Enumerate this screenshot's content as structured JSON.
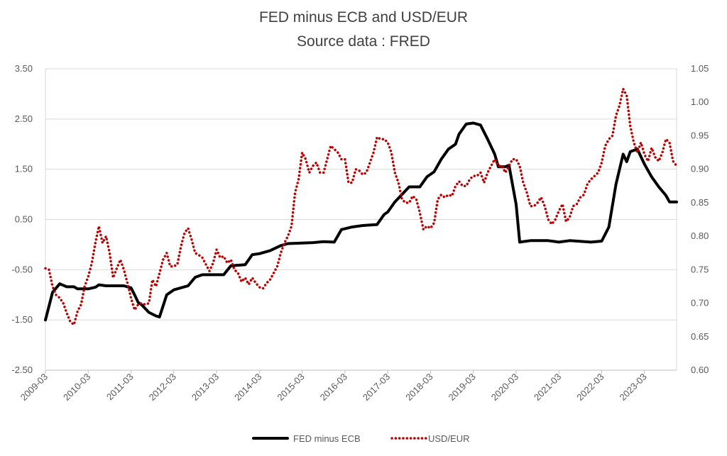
{
  "chart_data": {
    "type": "line",
    "title": "FED minus ECB and USD/EUR",
    "subtitle": "Source data : FRED",
    "xlabel": "",
    "ylabel": "",
    "y2label": "",
    "ylim": [
      -2.5,
      3.5
    ],
    "y2lim": [
      0.6,
      1.05
    ],
    "y_ticks": [
      "3.50",
      "2.50",
      "1.50",
      "0.50",
      "-0.50",
      "-1.50",
      "-2.50"
    ],
    "y_tick_values": [
      3.5,
      2.5,
      1.5,
      0.5,
      -0.5,
      -1.5,
      -2.5
    ],
    "y2_ticks": [
      "1.05",
      "1.00",
      "0.95",
      "0.90",
      "0.85",
      "0.80",
      "0.75",
      "0.70",
      "0.65",
      "0.60"
    ],
    "y2_tick_values": [
      1.05,
      1.0,
      0.95,
      0.9,
      0.85,
      0.8,
      0.75,
      0.7,
      0.65,
      0.6
    ],
    "x_ticks": [
      "2009-03",
      "2010-03",
      "2011-03",
      "2012-03",
      "2013-03",
      "2014-03",
      "2015-03",
      "2016-03",
      "2017-03",
      "2018-03",
      "2019-03",
      "2020-03",
      "2021-03",
      "2022-03",
      "2023-03"
    ],
    "x_range": [
      "2009-03",
      "2023-12"
    ],
    "grid": true,
    "legend_position": "bottom",
    "series": [
      {
        "name": "FED minus ECB",
        "axis": "left",
        "color": "#000000",
        "style": "solid",
        "points": [
          [
            "2009-03",
            -1.5
          ],
          [
            "2009-05",
            -0.95
          ],
          [
            "2009-07",
            -0.78
          ],
          [
            "2009-09",
            -0.84
          ],
          [
            "2009-11",
            -0.84
          ],
          [
            "2009-12",
            -0.88
          ],
          [
            "2010-03",
            -0.88
          ],
          [
            "2010-05",
            -0.85
          ],
          [
            "2010-06",
            -0.8
          ],
          [
            "2010-08",
            -0.82
          ],
          [
            "2011-01",
            -0.82
          ],
          [
            "2011-03",
            -0.86
          ],
          [
            "2011-04",
            -1.0
          ],
          [
            "2011-05",
            -1.15
          ],
          [
            "2011-06",
            -1.2
          ],
          [
            "2011-08",
            -1.35
          ],
          [
            "2011-10",
            -1.42
          ],
          [
            "2011-11",
            -1.44
          ],
          [
            "2012-01",
            -1.0
          ],
          [
            "2012-03",
            -0.9
          ],
          [
            "2012-06",
            -0.84
          ],
          [
            "2012-07",
            -0.82
          ],
          [
            "2012-09",
            -0.65
          ],
          [
            "2012-11",
            -0.6
          ],
          [
            "2013-05",
            -0.6
          ],
          [
            "2013-07",
            -0.42
          ],
          [
            "2013-11",
            -0.4
          ],
          [
            "2014-01",
            -0.2
          ],
          [
            "2014-03",
            -0.18
          ],
          [
            "2014-06",
            -0.12
          ],
          [
            "2014-09",
            -0.02
          ],
          [
            "2014-11",
            0.02
          ],
          [
            "2015-06",
            0.04
          ],
          [
            "2015-09",
            0.06
          ],
          [
            "2015-12",
            0.05
          ],
          [
            "2016-02",
            0.3
          ],
          [
            "2016-05",
            0.35
          ],
          [
            "2016-08",
            0.38
          ],
          [
            "2016-12",
            0.4
          ],
          [
            "2017-02",
            0.6
          ],
          [
            "2017-03",
            0.65
          ],
          [
            "2017-05",
            0.85
          ],
          [
            "2017-07",
            1.0
          ],
          [
            "2017-09",
            1.15
          ],
          [
            "2017-12",
            1.15
          ],
          [
            "2018-02",
            1.35
          ],
          [
            "2018-04",
            1.45
          ],
          [
            "2018-06",
            1.7
          ],
          [
            "2018-08",
            1.9
          ],
          [
            "2018-10",
            2.0
          ],
          [
            "2018-11",
            2.2
          ],
          [
            "2019-01",
            2.4
          ],
          [
            "2019-03",
            2.42
          ],
          [
            "2019-05",
            2.38
          ],
          [
            "2019-07",
            2.1
          ],
          [
            "2019-09",
            1.8
          ],
          [
            "2019-10",
            1.55
          ],
          [
            "2019-12",
            1.55
          ],
          [
            "2020-01",
            1.58
          ],
          [
            "2020-03",
            0.8
          ],
          [
            "2020-04",
            0.05
          ],
          [
            "2020-07",
            0.08
          ],
          [
            "2020-12",
            0.08
          ],
          [
            "2021-03",
            0.05
          ],
          [
            "2021-06",
            0.08
          ],
          [
            "2021-12",
            0.05
          ],
          [
            "2022-03",
            0.07
          ],
          [
            "2022-05",
            0.35
          ],
          [
            "2022-07",
            1.2
          ],
          [
            "2022-09",
            1.8
          ],
          [
            "2022-10",
            1.65
          ],
          [
            "2022-11",
            1.85
          ],
          [
            "2023-01",
            1.9
          ],
          [
            "2023-03",
            1.6
          ],
          [
            "2023-05",
            1.35
          ],
          [
            "2023-07",
            1.15
          ],
          [
            "2023-09",
            0.98
          ],
          [
            "2023-10",
            0.85
          ],
          [
            "2023-12",
            0.85
          ]
        ]
      },
      {
        "name": "USD/EUR",
        "axis": "right",
        "color": "#c00000",
        "style": "dotted",
        "points": [
          [
            "2009-03",
            0.752
          ],
          [
            "2009-04",
            0.75
          ],
          [
            "2009-05",
            0.725
          ],
          [
            "2009-06",
            0.712
          ],
          [
            "2009-07",
            0.708
          ],
          [
            "2009-08",
            0.7
          ],
          [
            "2009-09",
            0.685
          ],
          [
            "2009-10",
            0.672
          ],
          [
            "2009-11",
            0.668
          ],
          [
            "2009-12",
            0.688
          ],
          [
            "2010-01",
            0.698
          ],
          [
            "2010-02",
            0.725
          ],
          [
            "2010-03",
            0.74
          ],
          [
            "2010-04",
            0.76
          ],
          [
            "2010-05",
            0.79
          ],
          [
            "2010-06",
            0.815
          ],
          [
            "2010-07",
            0.79
          ],
          [
            "2010-08",
            0.8
          ],
          [
            "2010-09",
            0.775
          ],
          [
            "2010-10",
            0.738
          ],
          [
            "2010-11",
            0.752
          ],
          [
            "2010-12",
            0.765
          ],
          [
            "2011-01",
            0.75
          ],
          [
            "2011-02",
            0.73
          ],
          [
            "2011-03",
            0.708
          ],
          [
            "2011-04",
            0.69
          ],
          [
            "2011-05",
            0.698
          ],
          [
            "2011-06",
            0.7
          ],
          [
            "2011-07",
            0.698
          ],
          [
            "2011-08",
            0.7
          ],
          [
            "2011-09",
            0.735
          ],
          [
            "2011-10",
            0.725
          ],
          [
            "2011-11",
            0.745
          ],
          [
            "2011-12",
            0.765
          ],
          [
            "2012-01",
            0.775
          ],
          [
            "2012-02",
            0.755
          ],
          [
            "2012-03",
            0.755
          ],
          [
            "2012-04",
            0.758
          ],
          [
            "2012-05",
            0.785
          ],
          [
            "2012-06",
            0.805
          ],
          [
            "2012-07",
            0.812
          ],
          [
            "2012-08",
            0.795
          ],
          [
            "2012-09",
            0.775
          ],
          [
            "2012-10",
            0.772
          ],
          [
            "2012-11",
            0.768
          ],
          [
            "2012-12",
            0.758
          ],
          [
            "2013-01",
            0.748
          ],
          [
            "2013-02",
            0.76
          ],
          [
            "2013-03",
            0.78
          ],
          [
            "2013-04",
            0.768
          ],
          [
            "2013-05",
            0.77
          ],
          [
            "2013-06",
            0.76
          ],
          [
            "2013-07",
            0.765
          ],
          [
            "2013-08",
            0.75
          ],
          [
            "2013-09",
            0.745
          ],
          [
            "2013-10",
            0.732
          ],
          [
            "2013-11",
            0.738
          ],
          [
            "2013-12",
            0.728
          ],
          [
            "2014-01",
            0.738
          ],
          [
            "2014-02",
            0.73
          ],
          [
            "2014-03",
            0.724
          ],
          [
            "2014-04",
            0.722
          ],
          [
            "2014-05",
            0.73
          ],
          [
            "2014-06",
            0.735
          ],
          [
            "2014-07",
            0.745
          ],
          [
            "2014-08",
            0.755
          ],
          [
            "2014-09",
            0.775
          ],
          [
            "2014-10",
            0.79
          ],
          [
            "2014-11",
            0.8
          ],
          [
            "2014-12",
            0.815
          ],
          [
            "2015-01",
            0.865
          ],
          [
            "2015-02",
            0.885
          ],
          [
            "2015-03",
            0.925
          ],
          [
            "2015-04",
            0.915
          ],
          [
            "2015-05",
            0.895
          ],
          [
            "2015-06",
            0.905
          ],
          [
            "2015-07",
            0.91
          ],
          [
            "2015-08",
            0.895
          ],
          [
            "2015-09",
            0.895
          ],
          [
            "2015-10",
            0.915
          ],
          [
            "2015-11",
            0.935
          ],
          [
            "2015-12",
            0.93
          ],
          [
            "2016-01",
            0.925
          ],
          [
            "2016-02",
            0.915
          ],
          [
            "2016-03",
            0.915
          ],
          [
            "2016-04",
            0.88
          ],
          [
            "2016-05",
            0.88
          ],
          [
            "2016-06",
            0.9
          ],
          [
            "2016-07",
            0.898
          ],
          [
            "2016-08",
            0.892
          ],
          [
            "2016-09",
            0.895
          ],
          [
            "2016-10",
            0.91
          ],
          [
            "2016-11",
            0.925
          ],
          [
            "2016-12",
            0.948
          ],
          [
            "2017-01",
            0.945
          ],
          [
            "2017-02",
            0.945
          ],
          [
            "2017-03",
            0.94
          ],
          [
            "2017-04",
            0.925
          ],
          [
            "2017-05",
            0.895
          ],
          [
            "2017-06",
            0.88
          ],
          [
            "2017-07",
            0.855
          ],
          [
            "2017-08",
            0.85
          ],
          [
            "2017-09",
            0.85
          ],
          [
            "2017-10",
            0.86
          ],
          [
            "2017-11",
            0.855
          ],
          [
            "2017-12",
            0.835
          ],
          [
            "2018-01",
            0.81
          ],
          [
            "2018-02",
            0.815
          ],
          [
            "2018-03",
            0.812
          ],
          [
            "2018-04",
            0.82
          ],
          [
            "2018-05",
            0.855
          ],
          [
            "2018-06",
            0.862
          ],
          [
            "2018-07",
            0.858
          ],
          [
            "2018-08",
            0.862
          ],
          [
            "2018-09",
            0.86
          ],
          [
            "2018-10",
            0.875
          ],
          [
            "2018-11",
            0.882
          ],
          [
            "2018-12",
            0.875
          ],
          [
            "2019-01",
            0.875
          ],
          [
            "2019-02",
            0.885
          ],
          [
            "2019-03",
            0.89
          ],
          [
            "2019-04",
            0.89
          ],
          [
            "2019-05",
            0.895
          ],
          [
            "2019-06",
            0.88
          ],
          [
            "2019-07",
            0.895
          ],
          [
            "2019-08",
            0.905
          ],
          [
            "2019-09",
            0.915
          ],
          [
            "2019-10",
            0.905
          ],
          [
            "2019-11",
            0.905
          ],
          [
            "2019-12",
            0.895
          ],
          [
            "2020-01",
            0.905
          ],
          [
            "2020-02",
            0.915
          ],
          [
            "2020-03",
            0.915
          ],
          [
            "2020-04",
            0.905
          ],
          [
            "2020-05",
            0.88
          ],
          [
            "2020-06",
            0.865
          ],
          [
            "2020-07",
            0.845
          ],
          [
            "2020-08",
            0.845
          ],
          [
            "2020-09",
            0.85
          ],
          [
            "2020-10",
            0.858
          ],
          [
            "2020-11",
            0.845
          ],
          [
            "2020-12",
            0.825
          ],
          [
            "2021-01",
            0.818
          ],
          [
            "2021-02",
            0.825
          ],
          [
            "2021-03",
            0.838
          ],
          [
            "2021-04",
            0.848
          ],
          [
            "2021-05",
            0.822
          ],
          [
            "2021-06",
            0.828
          ],
          [
            "2021-07",
            0.845
          ],
          [
            "2021-08",
            0.848
          ],
          [
            "2021-09",
            0.858
          ],
          [
            "2021-10",
            0.862
          ],
          [
            "2021-11",
            0.878
          ],
          [
            "2021-12",
            0.885
          ],
          [
            "2022-01",
            0.89
          ],
          [
            "2022-02",
            0.895
          ],
          [
            "2022-03",
            0.91
          ],
          [
            "2022-04",
            0.935
          ],
          [
            "2022-05",
            0.945
          ],
          [
            "2022-06",
            0.95
          ],
          [
            "2022-07",
            0.98
          ],
          [
            "2022-08",
            0.995
          ],
          [
            "2022-09",
            1.02
          ],
          [
            "2022-10",
            1.01
          ],
          [
            "2022-11",
            0.965
          ],
          [
            "2022-12",
            0.94
          ],
          [
            "2023-01",
            0.925
          ],
          [
            "2023-02",
            0.94
          ],
          [
            "2023-03",
            0.922
          ],
          [
            "2023-04",
            0.912
          ],
          [
            "2023-05",
            0.932
          ],
          [
            "2023-06",
            0.918
          ],
          [
            "2023-07",
            0.912
          ],
          [
            "2023-08",
            0.925
          ],
          [
            "2023-09",
            0.945
          ],
          [
            "2023-10",
            0.94
          ],
          [
            "2023-11",
            0.912
          ],
          [
            "2023-12",
            0.905
          ]
        ]
      }
    ]
  }
}
